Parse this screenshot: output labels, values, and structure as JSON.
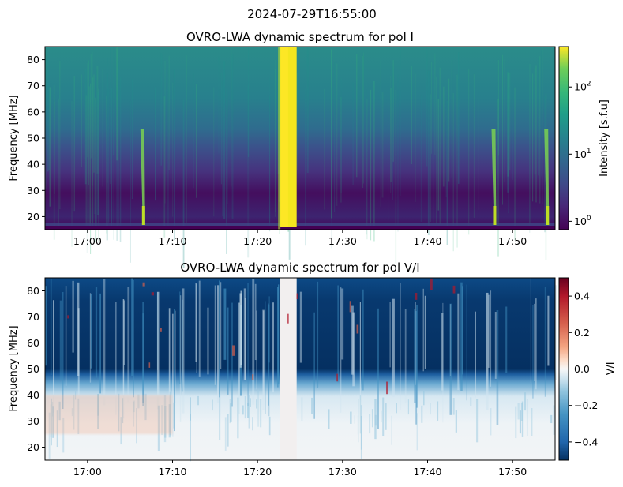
{
  "suptitle": "2024-07-29T16:55:00",
  "chart_data": [
    {
      "type": "heatmap",
      "title": "OVRO-LWA dynamic spectrum for pol I",
      "xlabel": "",
      "ylabel": "Frequency [MHz]",
      "x_range": [
        "16:55",
        "17:55"
      ],
      "ylim": [
        15,
        85
      ],
      "x_ticks": [
        "17:00",
        "17:10",
        "17:20",
        "17:30",
        "17:40",
        "17:50"
      ],
      "y_ticks": [
        20,
        30,
        40,
        50,
        60,
        70,
        80
      ],
      "colormap": "viridis",
      "colorbar": {
        "label": "Intensity [s.f.u]",
        "scale": "log",
        "range": [
          0.75,
          400
        ],
        "ticks": [
          {
            "v": 1,
            "base": "10",
            "exp": "0"
          },
          {
            "v": 10,
            "base": "10",
            "exp": "1"
          },
          {
            "v": 100,
            "base": "10",
            "exp": "2"
          }
        ]
      },
      "features": [
        {
          "kind": "burst",
          "start": "17:22.6",
          "end": "17:24.6",
          "fmin": 15,
          "fmax": 85,
          "intensity": 300
        },
        {
          "kind": "type-III",
          "time": "17:06.5",
          "intensity": 20
        },
        {
          "kind": "type-III",
          "time": "17:47.8",
          "intensity": 40
        },
        {
          "kind": "type-III",
          "time": "17:54.0",
          "intensity": 30
        }
      ]
    },
    {
      "type": "heatmap",
      "title": "OVRO-LWA dynamic spectrum for pol V/I",
      "xlabel": "",
      "ylabel": "Frequency [MHz]",
      "x_range": [
        "16:55",
        "17:55"
      ],
      "ylim": [
        15,
        85
      ],
      "x_ticks": [
        "17:00",
        "17:10",
        "17:20",
        "17:30",
        "17:40",
        "17:50"
      ],
      "y_ticks": [
        20,
        30,
        40,
        50,
        60,
        70,
        80
      ],
      "colormap": "RdBu_r",
      "colorbar": {
        "label": "V/I",
        "scale": "linear",
        "range": [
          -0.5,
          0.5
        ],
        "ticks": [
          {
            "v": 0.4,
            "label": "0.4"
          },
          {
            "v": 0.2,
            "label": "0.2"
          },
          {
            "v": 0.0,
            "label": "0.0"
          },
          {
            "v": -0.2,
            "label": "−0.2"
          },
          {
            "v": -0.4,
            "label": "−0.4"
          }
        ]
      },
      "features": [
        {
          "kind": "strong negative",
          "fmin": 47,
          "fmax": 85,
          "value": -0.5
        },
        {
          "kind": "weak positive",
          "start": "16:55",
          "end": "17:10",
          "fmin": 25,
          "fmax": 40,
          "value": 0.12
        },
        {
          "kind": "near zero",
          "start": "17:22.6",
          "end": "17:24.6",
          "fmin": 15,
          "fmax": 85,
          "value": 0.0
        }
      ]
    }
  ]
}
